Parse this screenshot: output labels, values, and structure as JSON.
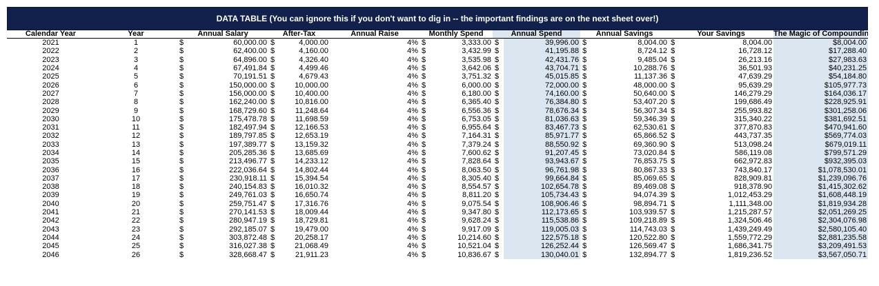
{
  "title": "DATA TABLE (You can ignore this if you don't want to dig in -- the important findings are on the next sheet over!)",
  "columns": {
    "calendar_year": "Calendar Year",
    "year": "Year",
    "salary": "Annual Salary",
    "after_tax": "After-Tax",
    "raise": "Annual Raise",
    "monthly": "Monthly Spend",
    "spend": "Annual Spend",
    "savings": "Annual Savings",
    "your_savings": "Your Savings",
    "magic": "The Magic of Compounding"
  },
  "currency": "$",
  "rows": [
    [
      "2021",
      "1",
      "60,000.00",
      "4,000.00",
      "4%",
      "3,333.00",
      "39,996.00",
      "8,004.00",
      "8,004.00",
      "$8,004.00"
    ],
    [
      "2022",
      "2",
      "62,400.00",
      "4,160.00",
      "4%",
      "3,432.99",
      "41,195.88",
      "8,724.12",
      "16,728.12",
      "$17,288.40"
    ],
    [
      "2023",
      "3",
      "64,896.00",
      "4,326.40",
      "4%",
      "3,535.98",
      "42,431.76",
      "9,485.04",
      "26,213.16",
      "$27,983.63"
    ],
    [
      "2024",
      "4",
      "67,491.84",
      "4,499.46",
      "4%",
      "3,642.06",
      "43,704.71",
      "10,288.76",
      "36,501.93",
      "$40,231.25"
    ],
    [
      "2025",
      "5",
      "70,191.51",
      "4,679.43",
      "4%",
      "3,751.32",
      "45,015.85",
      "11,137.36",
      "47,639.29",
      "$54,184.80"
    ],
    [
      "2026",
      "6",
      "150,000.00",
      "10,000.00",
      "4%",
      "6,000.00",
      "72,000.00",
      "48,000.00",
      "95,639.29",
      "$105,977.73"
    ],
    [
      "2027",
      "7",
      "156,000.00",
      "10,400.00",
      "4%",
      "6,180.00",
      "74,160.00",
      "50,640.00",
      "146,279.29",
      "$164,036.17"
    ],
    [
      "2028",
      "8",
      "162,240.00",
      "10,816.00",
      "4%",
      "6,365.40",
      "76,384.80",
      "53,407.20",
      "199,686.49",
      "$228,925.91"
    ],
    [
      "2029",
      "9",
      "168,729.60",
      "11,248.64",
      "4%",
      "6,556.36",
      "78,676.34",
      "56,307.34",
      "255,993.82",
      "$301,258.06"
    ],
    [
      "2030",
      "10",
      "175,478.78",
      "11,698.59",
      "4%",
      "6,753.05",
      "81,036.63",
      "59,346.39",
      "315,340.22",
      "$381,692.51"
    ],
    [
      "2031",
      "11",
      "182,497.94",
      "12,166.53",
      "4%",
      "6,955.64",
      "83,467.73",
      "62,530.61",
      "377,870.83",
      "$470,941.60"
    ],
    [
      "2032",
      "12",
      "189,797.85",
      "12,653.19",
      "4%",
      "7,164.31",
      "85,971.77",
      "65,866.52",
      "443,737.35",
      "$569,774.03"
    ],
    [
      "2033",
      "13",
      "197,389.77",
      "13,159.32",
      "4%",
      "7,379.24",
      "88,550.92",
      "69,360.90",
      "513,098.24",
      "$679,019.11"
    ],
    [
      "2034",
      "14",
      "205,285.36",
      "13,685.69",
      "4%",
      "7,600.62",
      "91,207.45",
      "73,020.84",
      "586,119.08",
      "$799,571.29"
    ],
    [
      "2035",
      "15",
      "213,496.77",
      "14,233.12",
      "4%",
      "7,828.64",
      "93,943.67",
      "76,853.75",
      "662,972.83",
      "$932,395.03"
    ],
    [
      "2036",
      "16",
      "222,036.64",
      "14,802.44",
      "4%",
      "8,063.50",
      "96,761.98",
      "80,867.33",
      "743,840.17",
      "$1,078,530.01"
    ],
    [
      "2037",
      "17",
      "230,918.11",
      "15,394.54",
      "4%",
      "8,305.40",
      "99,664.84",
      "85,069.65",
      "828,909.81",
      "$1,239,096.76"
    ],
    [
      "2038",
      "18",
      "240,154.83",
      "16,010.32",
      "4%",
      "8,554.57",
      "102,654.78",
      "89,469.08",
      "918,378.90",
      "$1,415,302.62"
    ],
    [
      "2039",
      "19",
      "249,761.03",
      "16,650.74",
      "4%",
      "8,811.20",
      "105,734.43",
      "94,074.39",
      "1,012,453.29",
      "$1,608,448.19"
    ],
    [
      "2040",
      "20",
      "259,751.47",
      "17,316.76",
      "4%",
      "9,075.54",
      "108,906.46",
      "98,894.71",
      "1,111,348.00",
      "$1,819,934.28"
    ],
    [
      "2041",
      "21",
      "270,141.53",
      "18,009.44",
      "4%",
      "9,347.80",
      "112,173.65",
      "103,939.57",
      "1,215,287.57",
      "$2,051,269.25"
    ],
    [
      "2042",
      "22",
      "280,947.19",
      "18,729.81",
      "4%",
      "9,628.24",
      "115,538.86",
      "109,218.89",
      "1,324,506.46",
      "$2,304,076.98"
    ],
    [
      "2043",
      "23",
      "292,185.07",
      "19,479.00",
      "4%",
      "9,917.09",
      "119,005.03",
      "114,743.03",
      "1,439,249.49",
      "$2,580,105.40"
    ],
    [
      "2044",
      "24",
      "303,872.48",
      "20,258.17",
      "4%",
      "10,214.60",
      "122,575.18",
      "120,522.80",
      "1,559,772.29",
      "$2,881,235.58"
    ],
    [
      "2045",
      "25",
      "316,027.38",
      "21,068.49",
      "4%",
      "10,521.04",
      "126,252.44",
      "126,569.47",
      "1,686,341.75",
      "$3,209,491.53"
    ],
    [
      "2046",
      "26",
      "328,668.47",
      "21,911.23",
      "4%",
      "10,836.67",
      "130,040.01",
      "132,894.77",
      "1,819,236.52",
      "$3,567,050.71"
    ]
  ]
}
